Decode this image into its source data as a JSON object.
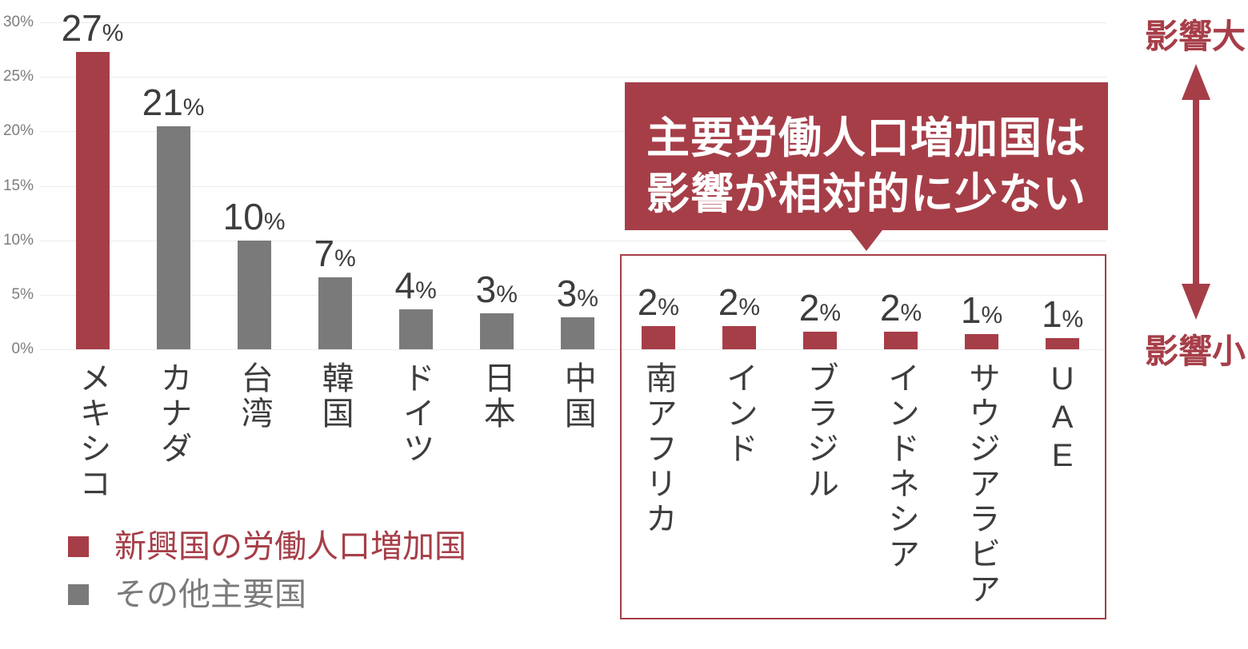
{
  "chart_data": {
    "type": "bar",
    "title": "",
    "xlabel": "",
    "ylabel": "",
    "categories": [
      "メキシコ",
      "カナダ",
      "台湾",
      "韓国",
      "ドイツ",
      "日本",
      "中国",
      "南アフリカ",
      "インド",
      "ブラジル",
      "インドネシア",
      "サウジアラビア",
      "UAE"
    ],
    "values": [
      27,
      21,
      10,
      7,
      4,
      3,
      3,
      2,
      2,
      2,
      2,
      1,
      1
    ],
    "display_values": [
      27.3,
      20.5,
      10.0,
      6.6,
      3.7,
      3.3,
      2.9,
      2.1,
      2.1,
      1.6,
      1.6,
      1.4,
      1.0
    ],
    "unit": "%",
    "series_membership": [
      "emerging",
      "other",
      "other",
      "other",
      "other",
      "other",
      "other",
      "emerging",
      "emerging",
      "emerging",
      "emerging",
      "emerging",
      "emerging"
    ],
    "ylim": [
      0,
      30
    ],
    "ytick_values": [
      0,
      5,
      10,
      15,
      20,
      25,
      30
    ],
    "ytick_labels": [
      "0%",
      "5%",
      "10%",
      "15%",
      "20%",
      "25%",
      "30%"
    ],
    "grid": true,
    "legend_position": "bottom-left",
    "legend": [
      {
        "id": "emerging",
        "label": "新興国の労働人口増加国",
        "color": "#A63E48"
      },
      {
        "id": "other",
        "label": "その他主要国",
        "color": "#7A7A7A"
      }
    ],
    "highlight_box_categories": [
      "南アフリカ",
      "インド",
      "ブラジル",
      "インドネシア",
      "サウジアラビア",
      "UAE"
    ]
  },
  "annotations": {
    "callout_text_line1": "主要労働人口増加国は",
    "callout_text_line2": "影響が相対的に少ない",
    "impact_high_label": "影響大",
    "impact_low_label": "影響小"
  },
  "colors": {
    "accent_red": "#A63E48",
    "bar_gray": "#7A7A7A",
    "label_dark": "#3D3D3D",
    "tick_gray": "#7D7D7D",
    "gridline": "#ECECEC",
    "callout_bg": "#A63E48",
    "callout_text": "#FFFFFF",
    "background": "#FFFFFF"
  }
}
